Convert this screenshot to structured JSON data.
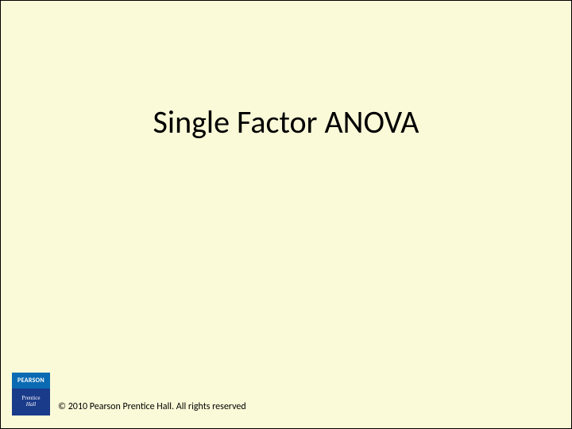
{
  "slide": {
    "title": "Single Factor ANOVA",
    "background_color": "#fbfad8",
    "title_fontsize": 40,
    "title_color": "#000000"
  },
  "logo": {
    "top_label": "PEARSON",
    "bottom_line1": "Prentice",
    "bottom_line2": "Hall",
    "top_bg": "#0a6bb3",
    "bottom_bg": "#1a3a8a"
  },
  "footer": {
    "copyright": "© 2010 Pearson Prentice Hall. All rights reserved",
    "fontsize": 12
  }
}
